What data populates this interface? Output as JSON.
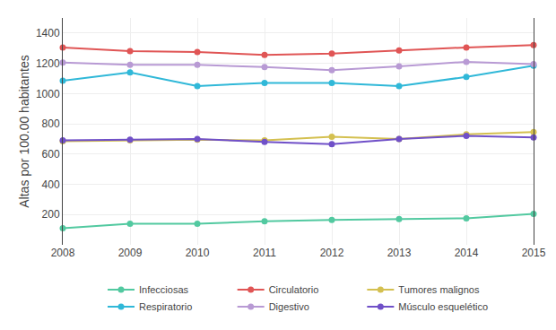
{
  "chart_data": {
    "type": "line",
    "x": [
      2008,
      2009,
      2010,
      2011,
      2012,
      2013,
      2014,
      2015
    ],
    "xlim": [
      2008,
      2015
    ],
    "xticks": [
      2008,
      2009,
      2010,
      2011,
      2012,
      2013,
      2014,
      2015
    ],
    "ylim": [
      0,
      1500
    ],
    "yticks": [
      200,
      400,
      600,
      800,
      1000,
      1200,
      1400
    ],
    "ylabel": "Altas por 100.00 habitantes",
    "grid": true,
    "legend": "bottom",
    "marker": "circle",
    "series": [
      {
        "name": "Infecciosas",
        "color": "#52c9a0",
        "values": [
          110,
          140,
          140,
          155,
          165,
          170,
          175,
          205
        ]
      },
      {
        "name": "Circulatorio",
        "color": "#e05555",
        "values": [
          1305,
          1280,
          1275,
          1255,
          1265,
          1285,
          1305,
          1320
        ]
      },
      {
        "name": "Tumores malignos",
        "color": "#d4c050",
        "values": [
          685,
          690,
          695,
          690,
          715,
          700,
          730,
          745
        ]
      },
      {
        "name": "Respiratorio",
        "color": "#30b8d8",
        "values": [
          1085,
          1140,
          1050,
          1070,
          1070,
          1050,
          1110,
          1185
        ]
      },
      {
        "name": "Digestivo",
        "color": "#b89ad4",
        "values": [
          1205,
          1190,
          1190,
          1175,
          1155,
          1180,
          1210,
          1195
        ]
      },
      {
        "name": "Músculo esquelético",
        "color": "#7050c8",
        "values": [
          690,
          695,
          700,
          680,
          665,
          700,
          720,
          710
        ]
      }
    ]
  }
}
